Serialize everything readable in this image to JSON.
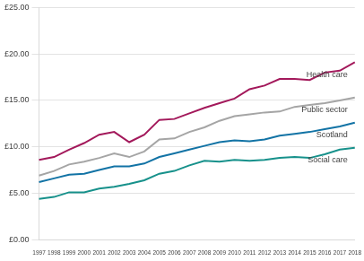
{
  "chart_data": {
    "type": "line",
    "categories": [
      "1997",
      "1998",
      "1999",
      "2000",
      "2001",
      "2002",
      "2003",
      "2004",
      "2005",
      "2006",
      "2007",
      "2008",
      "2009",
      "2010",
      "2011",
      "2012",
      "2013",
      "2014",
      "2015",
      "2016",
      "2017",
      "2018"
    ],
    "series": [
      {
        "name": "Health care",
        "color": "#a3195b",
        "values": [
          8.6,
          8.9,
          9.7,
          10.4,
          11.3,
          11.6,
          10.5,
          11.3,
          12.9,
          13.0,
          13.6,
          14.2,
          14.7,
          15.2,
          16.2,
          16.6,
          17.3,
          17.3,
          17.2,
          18.0,
          18.2,
          19.1
        ]
      },
      {
        "name": "Public sector",
        "color": "#a5a5a5",
        "values": [
          6.9,
          7.4,
          8.1,
          8.4,
          8.8,
          9.3,
          8.9,
          9.5,
          10.8,
          10.9,
          11.6,
          12.1,
          12.8,
          13.3,
          13.5,
          13.7,
          13.8,
          14.3,
          14.5,
          14.7,
          15.0,
          15.3
        ]
      },
      {
        "name": "Scotland",
        "color": "#1273a5",
        "values": [
          6.2,
          6.6,
          7.0,
          7.1,
          7.5,
          7.9,
          7.9,
          8.2,
          8.9,
          9.3,
          9.7,
          10.1,
          10.5,
          10.7,
          10.6,
          10.8,
          11.2,
          11.4,
          11.6,
          11.9,
          12.2,
          12.6
        ]
      },
      {
        "name": "Social care",
        "color": "#17918b",
        "values": [
          4.4,
          4.6,
          5.1,
          5.1,
          5.5,
          5.7,
          6.0,
          6.4,
          7.1,
          7.4,
          8.0,
          8.5,
          8.4,
          8.6,
          8.5,
          8.6,
          8.8,
          8.9,
          8.8,
          9.2,
          9.7,
          9.9
        ]
      }
    ],
    "ylim": [
      0,
      25
    ],
    "yticks": [
      {
        "value": 0,
        "label": "£0.00"
      },
      {
        "value": 5,
        "label": "£5.00"
      },
      {
        "value": 10,
        "label": "£10.00"
      },
      {
        "value": 15,
        "label": "£15.00"
      },
      {
        "value": 20,
        "label": "£20.00"
      },
      {
        "value": 25,
        "label": "£25.00"
      }
    ],
    "grid": true
  }
}
